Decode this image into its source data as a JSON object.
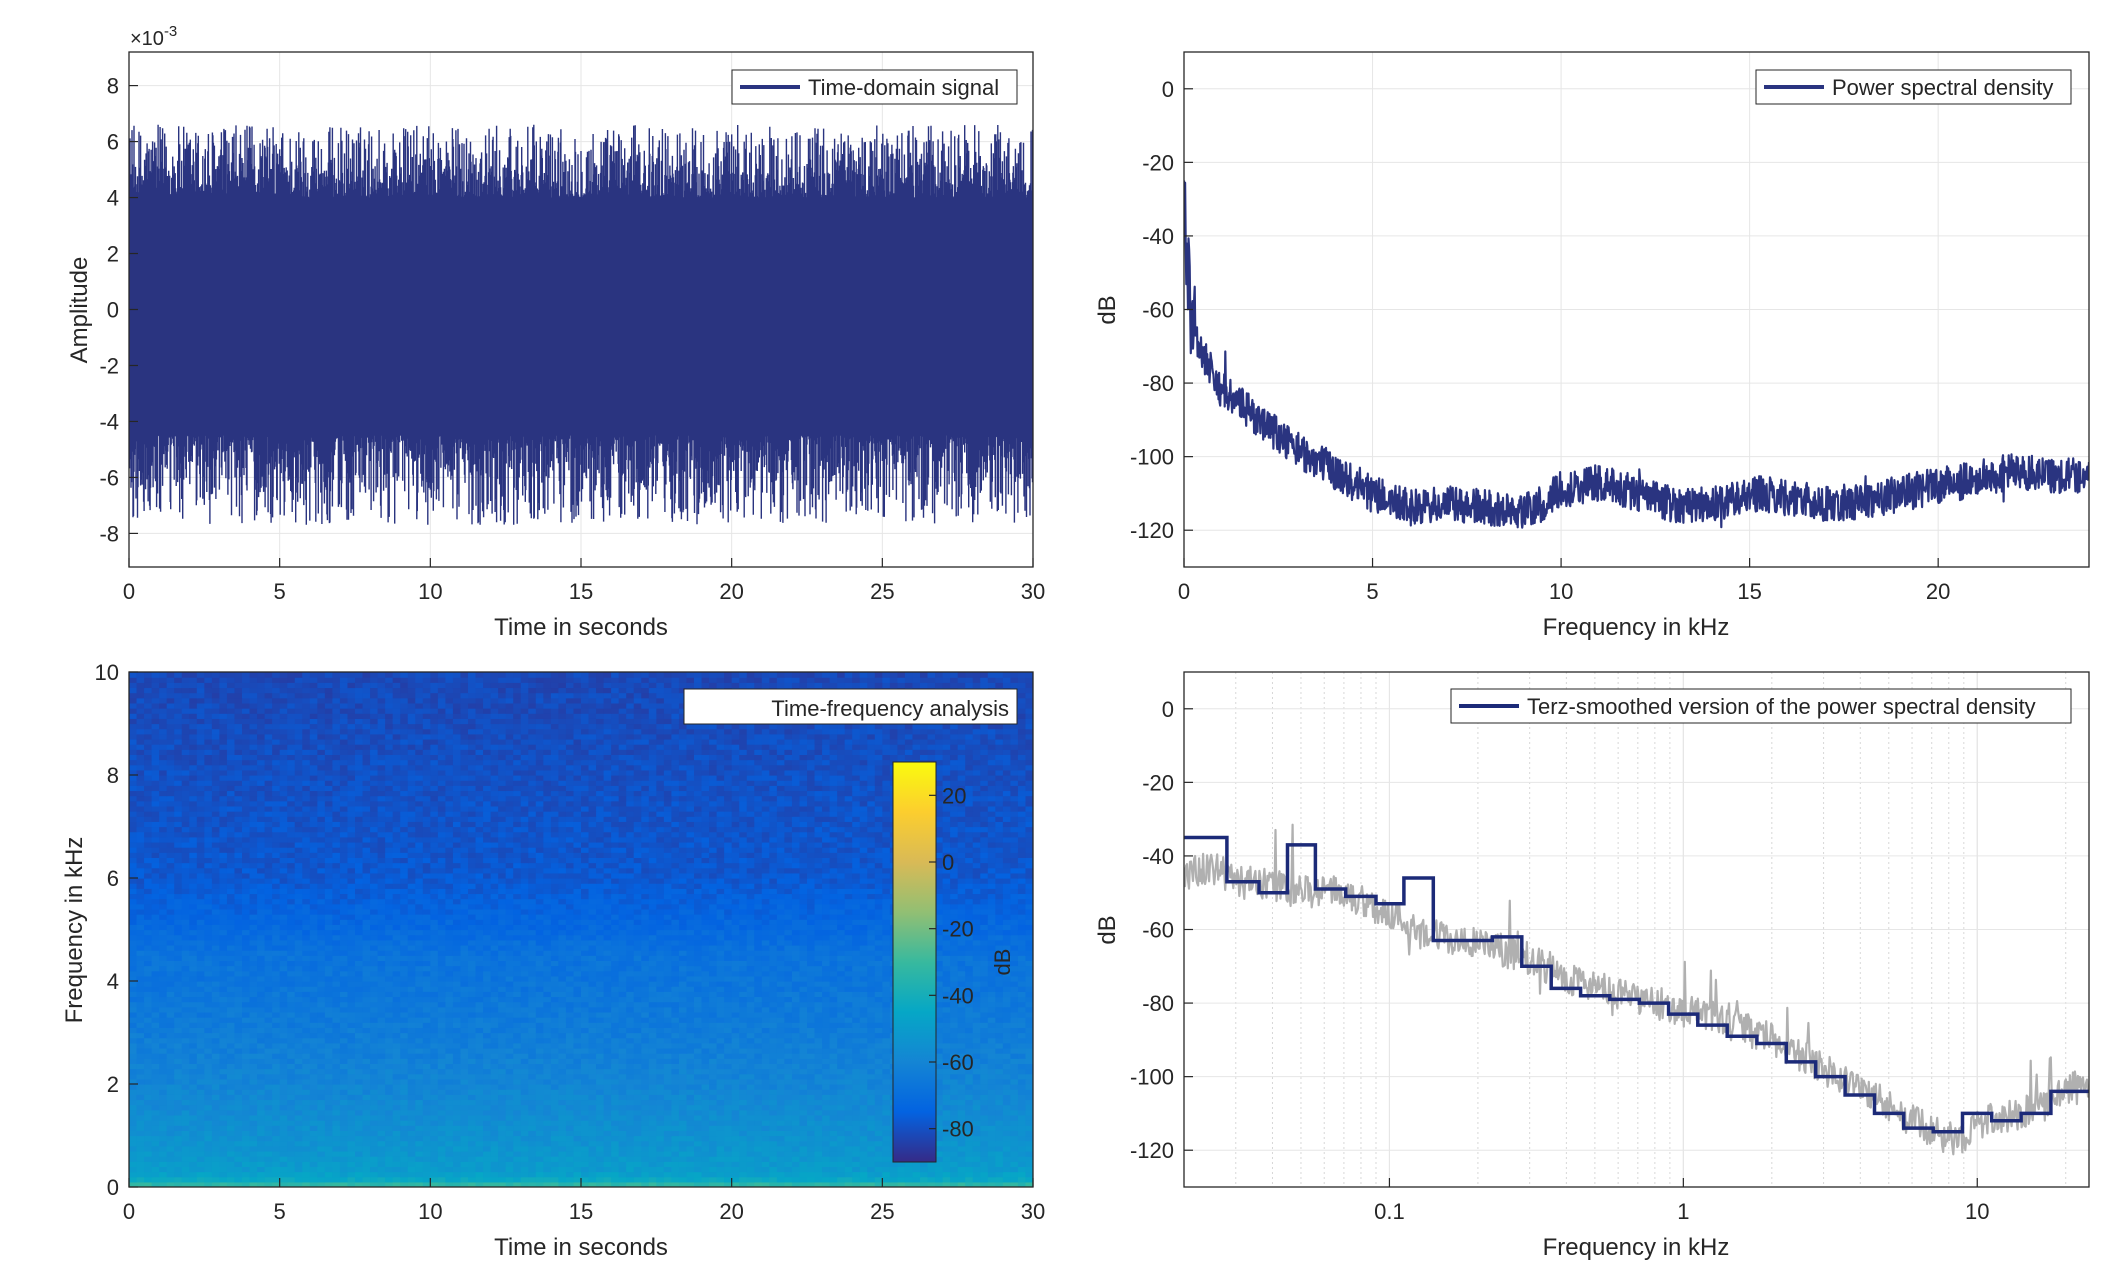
{
  "colors": {
    "signal": "#2a3480",
    "smoothed": "#1c2a78",
    "raw_gray": "#b0b0b0",
    "grid": "#e6e6e6",
    "axis": "#262626"
  },
  "chart_data": [
    {
      "id": "time-domain",
      "type": "line",
      "legend": "Time-domain signal",
      "legend_position": "top-right",
      "xlabel": "Time in seconds",
      "ylabel": "Amplitude",
      "exponent_label": "×10",
      "exponent_power": "-3",
      "xlim": [
        0,
        30
      ],
      "ylim": [
        -9.2,
        9.2
      ],
      "xticks": [
        0,
        5,
        10,
        15,
        20,
        25,
        30
      ],
      "xtick_labels": [
        "0",
        "5",
        "10",
        "15",
        "20",
        "25",
        "30"
      ],
      "yticks": [
        -8,
        -6,
        -4,
        -2,
        0,
        2,
        4,
        6,
        8
      ],
      "ytick_labels": [
        "-8",
        "-6",
        "-4",
        "-2",
        "0",
        "2",
        "4",
        "6",
        "8"
      ],
      "grid": true,
      "series": [
        {
          "name": "Time-domain signal",
          "unit_scale": 0.001,
          "dense_band": [
            -4.5,
            4.0
          ],
          "peak_range": [
            -7.7,
            6.6
          ]
        }
      ]
    },
    {
      "id": "psd",
      "type": "line",
      "legend": "Power spectral density",
      "legend_position": "top-right",
      "xlabel": "Frequency in kHz",
      "ylabel": "dB",
      "xlim": [
        0,
        24
      ],
      "ylim": [
        -130,
        10
      ],
      "xticks": [
        0,
        5,
        10,
        15,
        20
      ],
      "xtick_labels": [
        "0",
        "5",
        "10",
        "15",
        "20"
      ],
      "yticks": [
        0,
        -20,
        -40,
        -60,
        -80,
        -100,
        -120
      ],
      "ytick_labels": [
        "0",
        "-20",
        "-40",
        "-60",
        "-80",
        "-100",
        "-120"
      ],
      "grid": true,
      "series": [
        {
          "name": "Power spectral density",
          "x": [
            0,
            0.05,
            0.1,
            0.2,
            0.3,
            0.5,
            0.8,
            1,
            1.5,
            2,
            2.5,
            3,
            4,
            5,
            6,
            7,
            8,
            9,
            9.5,
            10,
            11,
            12,
            13,
            14,
            15,
            16,
            17,
            18,
            19,
            20,
            21,
            22,
            23,
            24
          ],
          "y": [
            -32,
            -40,
            -52,
            -60,
            -66,
            -72,
            -78,
            -82,
            -86,
            -90,
            -94,
            -98,
            -104,
            -110,
            -114,
            -113,
            -114,
            -115,
            -113,
            -109,
            -107,
            -110,
            -113,
            -113,
            -110,
            -111,
            -113,
            -112,
            -110,
            -108,
            -106,
            -104,
            -105,
            -105
          ]
        }
      ]
    },
    {
      "id": "spectrogram",
      "type": "heatmap",
      "legend": "Time-frequency analysis",
      "legend_position": "top-right",
      "xlabel": "Time in seconds",
      "ylabel": "Frequency in kHz",
      "xlim": [
        0,
        30
      ],
      "ylim": [
        0,
        10
      ],
      "xticks": [
        0,
        5,
        10,
        15,
        20,
        25,
        30
      ],
      "xtick_labels": [
        "0",
        "5",
        "10",
        "15",
        "20",
        "25",
        "30"
      ],
      "yticks": [
        0,
        2,
        4,
        6,
        8,
        10
      ],
      "ytick_labels": [
        "0",
        "2",
        "4",
        "6",
        "8",
        "10"
      ],
      "colorbar": {
        "label": "dB",
        "range": [
          -90,
          30
        ],
        "ticks": [
          20,
          0,
          -20,
          -40,
          -60,
          -80
        ],
        "tick_labels": [
          "20",
          "0",
          "-20",
          "-40",
          "-60",
          "-80"
        ]
      },
      "level_profile": {
        "freq_khz": [
          0,
          0.1,
          0.3,
          1,
          2,
          3,
          4,
          4.5,
          5,
          6,
          8,
          10
        ],
        "db": [
          -25,
          -42,
          -50,
          -55,
          -60,
          -64,
          -67,
          -68,
          -72,
          -78,
          -80,
          -82
        ]
      }
    },
    {
      "id": "terz",
      "type": "line",
      "legend": "Terz-smoothed version of the power spectral density",
      "legend_position": "top-right",
      "xlabel": "Frequency in kHz",
      "ylabel": "dB",
      "xscale": "log",
      "xlim": [
        0.02,
        24
      ],
      "ylim": [
        -130,
        10
      ],
      "xticks": [
        0.1,
        1,
        10
      ],
      "xtick_labels": [
        "0.1",
        "1",
        "10"
      ],
      "yticks": [
        0,
        -20,
        -40,
        -60,
        -80,
        -100,
        -120
      ],
      "ytick_labels": [
        "0",
        "-20",
        "-40",
        "-60",
        "-80",
        "-100",
        "-120"
      ],
      "grid": true,
      "series": [
        {
          "name": "Terz-smoothed version of the power spectral density",
          "band_edges_khz": [
            0.02,
            0.028,
            0.036,
            0.045,
            0.056,
            0.071,
            0.09,
            0.112,
            0.141,
            0.178,
            0.224,
            0.282,
            0.355,
            0.447,
            0.562,
            0.708,
            0.891,
            1.12,
            1.41,
            1.78,
            2.24,
            2.82,
            3.55,
            4.47,
            5.62,
            7.08,
            8.91,
            11.2,
            14.1,
            17.8,
            24
          ],
          "band_db": [
            -35,
            -47,
            -50,
            -37,
            -49,
            -51,
            -53,
            -46,
            -63,
            -63,
            -62,
            -70,
            -76,
            -78,
            -79,
            -80,
            -83,
            -86,
            -89,
            -91,
            -96,
            -100,
            -105,
            -110,
            -114,
            -115,
            -110,
            -112,
            -110,
            -104
          ]
        },
        {
          "name": "raw",
          "x": [
            0.02,
            0.025,
            0.03,
            0.04,
            0.05,
            0.06,
            0.08,
            0.1,
            0.13,
            0.16,
            0.2,
            0.3,
            0.4,
            0.6,
            0.8,
            1,
            1.3,
            1.6,
            2,
            2.5,
            3,
            4,
            5,
            6,
            7,
            8,
            9,
            10,
            12,
            14,
            17,
            20,
            24
          ],
          "y": [
            -45,
            -43,
            -47,
            -48,
            -50,
            -49,
            -52,
            -56,
            -60,
            -63,
            -64,
            -68,
            -73,
            -78,
            -80,
            -82,
            -84,
            -87,
            -90,
            -94,
            -98,
            -103,
            -108,
            -112,
            -115,
            -117,
            -116,
            -113,
            -111,
            -110,
            -108,
            -103,
            -103
          ]
        }
      ]
    }
  ]
}
